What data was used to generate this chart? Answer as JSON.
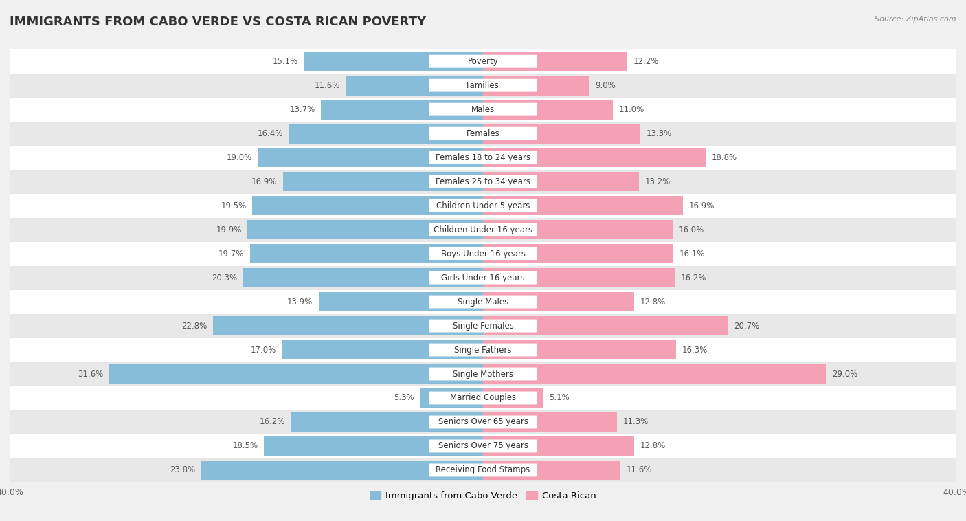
{
  "title": "IMMIGRANTS FROM CABO VERDE VS COSTA RICAN POVERTY",
  "source": "Source: ZipAtlas.com",
  "categories": [
    "Poverty",
    "Families",
    "Males",
    "Females",
    "Females 18 to 24 years",
    "Females 25 to 34 years",
    "Children Under 5 years",
    "Children Under 16 years",
    "Boys Under 16 years",
    "Girls Under 16 years",
    "Single Males",
    "Single Females",
    "Single Fathers",
    "Single Mothers",
    "Married Couples",
    "Seniors Over 65 years",
    "Seniors Over 75 years",
    "Receiving Food Stamps"
  ],
  "left_values": [
    15.1,
    11.6,
    13.7,
    16.4,
    19.0,
    16.9,
    19.5,
    19.9,
    19.7,
    20.3,
    13.9,
    22.8,
    17.0,
    31.6,
    5.3,
    16.2,
    18.5,
    23.8
  ],
  "right_values": [
    12.2,
    9.0,
    11.0,
    13.3,
    18.8,
    13.2,
    16.9,
    16.0,
    16.1,
    16.2,
    12.8,
    20.7,
    16.3,
    29.0,
    5.1,
    11.3,
    12.8,
    11.6
  ],
  "left_color": "#87bdd8",
  "right_color": "#f4a0b5",
  "left_label": "Immigrants from Cabo Verde",
  "right_label": "Costa Rican",
  "xlim": 40.0,
  "background_color": "#f0f0f0",
  "row_color_even": "#ffffff",
  "row_color_odd": "#e8e8e8",
  "title_fontsize": 13,
  "bar_height": 0.82,
  "label_fontsize": 8.5,
  "value_fontsize": 8.5,
  "axis_tick_fontsize": 9
}
